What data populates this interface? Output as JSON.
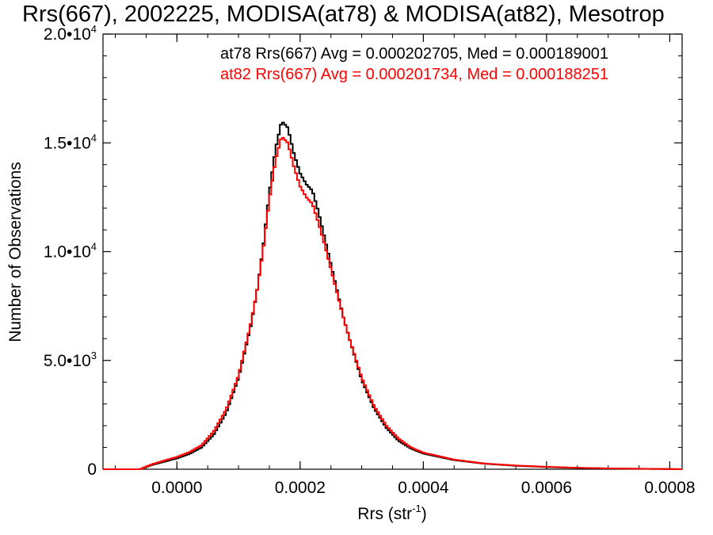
{
  "chart_data": {
    "type": "line",
    "title": "Rrs(667), 2002225, MODISA(at78) & MODISA(at82), Mesotrop",
    "xlabel": "Rrs (str",
    "xlabel_sup": "-1",
    "xlabel_close": ")",
    "ylabel": "Number of Observations",
    "xlim": [
      -0.00012,
      0.00082
    ],
    "ylim": [
      0,
      20000
    ],
    "x_ticks": [
      {
        "value": 0.0,
        "label": "0.0000"
      },
      {
        "value": 0.0002,
        "label": "0.0002"
      },
      {
        "value": 0.0004,
        "label": "0.0004"
      },
      {
        "value": 0.0006,
        "label": "0.0006"
      },
      {
        "value": 0.0008,
        "label": "0.0008"
      }
    ],
    "y_ticks": [
      {
        "value": 0,
        "label": "0",
        "sup": ""
      },
      {
        "value": 5000,
        "label": "5.0•10",
        "sup": "3"
      },
      {
        "value": 10000,
        "label": "1.0•10",
        "sup": "4"
      },
      {
        "value": 15000,
        "label": "1.5•10",
        "sup": "4"
      },
      {
        "value": 20000,
        "label": "2.0•10",
        "sup": "4"
      }
    ],
    "annotations": [
      {
        "text": "at78 Rrs(667) Avg = 0.000202705, Med = 0.000189001",
        "color": "#000000"
      },
      {
        "text": "at82 Rrs(667) Avg = 0.000201734, Med = 0.000188251",
        "color": "#ff0000"
      }
    ],
    "x": [
      -0.00012,
      -6e-05,
      -4e-05,
      -2e-05,
      0.0,
      2e-05,
      4e-05,
      6e-05,
      8e-05,
      0.0001,
      0.00012,
      0.00013,
      0.00014,
      0.00015,
      0.00016,
      0.00017,
      0.00018,
      0.00019,
      0.0002,
      0.00021,
      0.00022,
      0.00023,
      0.00024,
      0.00025,
      0.00026,
      0.00027,
      0.00028,
      0.0003,
      0.00032,
      0.00034,
      0.00036,
      0.00038,
      0.0004,
      0.00045,
      0.0005,
      0.00055,
      0.0006,
      0.00065,
      0.0007,
      0.00075,
      0.0008,
      0.00082
    ],
    "series": [
      {
        "color": "#000000",
        "values": [
          0,
          0,
          200,
          350,
          500,
          700,
          1000,
          1600,
          2600,
          4200,
          6600,
          8200,
          10200,
          12700,
          14700,
          16000,
          15700,
          14500,
          13600,
          13100,
          12800,
          11800,
          10600,
          9400,
          8200,
          7000,
          6000,
          4100,
          2800,
          1900,
          1300,
          950,
          720,
          420,
          250,
          160,
          100,
          60,
          35,
          20,
          8,
          0
        ]
      },
      {
        "color": "#ff0000",
        "values": [
          0,
          0,
          230,
          400,
          560,
          780,
          1100,
          1750,
          2750,
          4300,
          6700,
          8200,
          10100,
          12400,
          14200,
          15300,
          15000,
          13900,
          13000,
          12500,
          12200,
          11300,
          10300,
          9200,
          8100,
          7000,
          6000,
          4200,
          2900,
          2000,
          1400,
          1000,
          760,
          440,
          260,
          170,
          110,
          65,
          40,
          22,
          9,
          0
        ]
      }
    ]
  }
}
